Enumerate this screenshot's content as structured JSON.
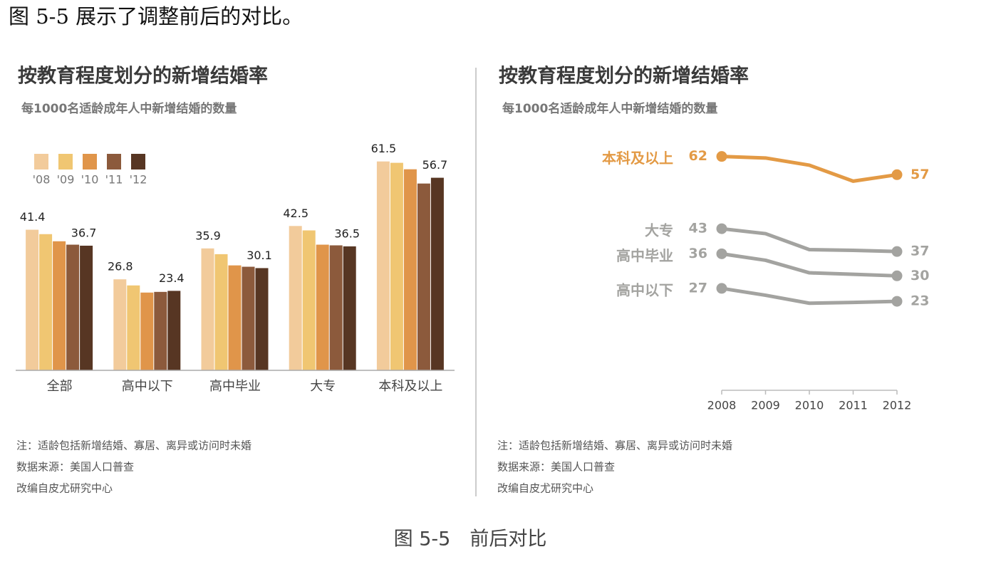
{
  "intro": "图 5-5 展示了调整前后的对比。",
  "caption": "图 5-5　前后对比",
  "chart_data": [
    {
      "type": "bar",
      "title": "按教育程度划分的新增结婚率",
      "subtitle": "每1000名适龄成年人中新增结婚的数量",
      "categories": [
        "全部",
        "高中以下",
        "高中毕业",
        "大专",
        "本科及以上"
      ],
      "series": [
        {
          "name": "'08",
          "color": "#f2cb9b",
          "values": [
            41.4,
            26.8,
            35.9,
            42.5,
            61.5
          ]
        },
        {
          "name": "'09",
          "color": "#f0c672",
          "values": [
            40.1,
            25.0,
            34.2,
            41.2,
            61.1
          ]
        },
        {
          "name": "'10",
          "color": "#e0954a",
          "values": [
            38.0,
            22.9,
            30.9,
            37.0,
            59.2
          ]
        },
        {
          "name": "'11",
          "color": "#8c5a3c",
          "values": [
            37.0,
            23.1,
            30.5,
            36.8,
            55.0
          ]
        },
        {
          "name": "'12",
          "color": "#573623",
          "values": [
            36.7,
            23.4,
            30.1,
            36.5,
            56.7
          ]
        }
      ],
      "data_labels": "first-last",
      "ylim": [
        0,
        65
      ],
      "notes": [
        "注：适龄包括新增结婚、寡居、离异或访问时未婚",
        "数据来源：美国人口普查",
        "改编自皮尤研究中心"
      ]
    },
    {
      "type": "line",
      "title": "按教育程度划分的新增结婚率",
      "subtitle": "每1000名适龄成年人中新增结婚的数量",
      "x": [
        2008,
        2009,
        2010,
        2011,
        2012
      ],
      "series": [
        {
          "name": "本科及以上",
          "color": "#e39a45",
          "values": [
            61.5,
            61.1,
            59.2,
            55.0,
            56.7
          ],
          "value_labels": [
            "62",
            null,
            null,
            null,
            "57"
          ]
        },
        {
          "name": "大专",
          "color": "#a3a3a0",
          "values": [
            42.5,
            41.2,
            37.0,
            36.8,
            36.5
          ],
          "value_labels": [
            "43",
            null,
            null,
            null,
            "37"
          ]
        },
        {
          "name": "高中毕业",
          "color": "#a3a3a0",
          "values": [
            35.9,
            34.2,
            30.9,
            30.5,
            30.1
          ],
          "value_labels": [
            "36",
            null,
            null,
            null,
            "30"
          ]
        },
        {
          "name": "高中以下",
          "color": "#a3a3a0",
          "values": [
            26.8,
            25.0,
            22.9,
            23.1,
            23.4
          ],
          "value_labels": [
            "27",
            null,
            null,
            null,
            "23"
          ]
        }
      ],
      "xlim": [
        2008,
        2012
      ],
      "xticks": [
        2008,
        2009,
        2010,
        2011,
        2012
      ],
      "ylim": [
        0,
        65
      ],
      "notes": [
        "注：适龄包括新增结婚、寡居、离异或访问时未婚",
        "数据来源：美国人口普查",
        "改编自皮尤研究中心"
      ]
    }
  ]
}
